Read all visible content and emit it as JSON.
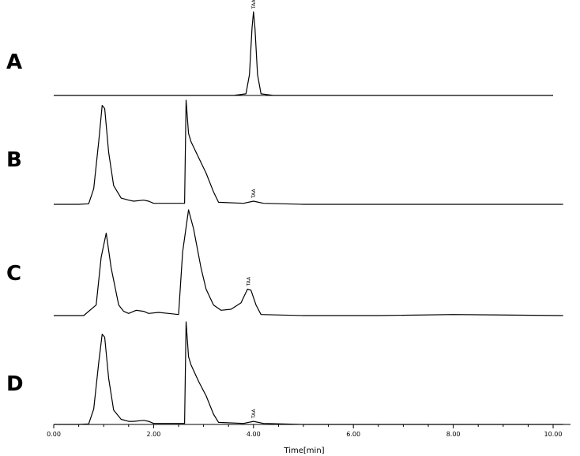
{
  "chart_data": {
    "type": "line",
    "title": "",
    "xlabel": "Time[min]",
    "ylabel": "",
    "xlim": [
      0,
      10
    ],
    "x_ticks": [
      "0.00",
      "2.00",
      "4.00",
      "6.00",
      "8.00",
      "10.00"
    ],
    "grid": false,
    "panels": [
      {
        "label": "A",
        "peak_label": "TAA",
        "peak_label_time": 4.0,
        "x_start": 0.0,
        "x_end": 10.0,
        "series": [
          {
            "x": [
              0,
              3.6,
              3.85,
              3.92,
              3.97,
              4.0,
              4.03,
              4.08,
              4.15,
              4.4,
              10.0
            ],
            "y": [
              0,
              0,
              0.02,
              0.25,
              0.8,
              1.0,
              0.8,
              0.25,
              0.02,
              0,
              0
            ]
          }
        ]
      },
      {
        "label": "B",
        "peak_label": "TAA",
        "peak_label_time": 4.0,
        "x_start": 0.0,
        "x_end": 10.2,
        "series": [
          {
            "x": [
              0,
              0.5,
              0.7,
              0.8,
              0.9,
              0.97,
              1.02,
              1.1,
              1.2,
              1.35,
              1.5,
              1.6,
              1.8,
              1.9,
              2.0,
              2.4,
              2.62,
              2.65,
              2.7,
              2.75,
              2.9,
              3.05,
              3.2,
              3.3,
              3.8,
              4.0,
              4.2,
              5.0,
              10.2
            ],
            "y": [
              0,
              0,
              0.005,
              0.15,
              0.6,
              0.95,
              0.92,
              0.5,
              0.18,
              0.06,
              0.04,
              0.03,
              0.04,
              0.03,
              0.01,
              0.01,
              0.01,
              1.0,
              0.68,
              0.6,
              0.45,
              0.3,
              0.12,
              0.02,
              0.01,
              0.03,
              0.01,
              0,
              0
            ]
          }
        ]
      },
      {
        "label": "C",
        "peak_label": "TAA",
        "peak_label_time": 3.9,
        "x_start": 0.0,
        "x_end": 10.2,
        "series": [
          {
            "x": [
              0,
              0.6,
              0.85,
              0.95,
              1.05,
              1.15,
              1.3,
              1.4,
              1.5,
              1.65,
              1.8,
              1.9,
              2.1,
              2.3,
              2.5,
              2.58,
              2.7,
              2.8,
              2.95,
              3.05,
              3.2,
              3.35,
              3.55,
              3.75,
              3.88,
              3.95,
              4.05,
              4.15,
              5.0,
              6.5,
              8.0,
              10.2
            ],
            "y": [
              0,
              0,
              0.1,
              0.55,
              0.78,
              0.45,
              0.1,
              0.04,
              0.02,
              0.05,
              0.04,
              0.02,
              0.03,
              0.02,
              0.01,
              0.6,
              1.0,
              0.82,
              0.45,
              0.25,
              0.1,
              0.05,
              0.06,
              0.12,
              0.25,
              0.24,
              0.1,
              0.01,
              0,
              0,
              0.01,
              0
            ]
          }
        ]
      },
      {
        "label": "D",
        "peak_label": "TAA",
        "peak_label_time": 4.0,
        "x_start": 0.0,
        "x_end": 10.2,
        "series": [
          {
            "x": [
              0,
              0.5,
              0.7,
              0.8,
              0.9,
              0.97,
              1.02,
              1.1,
              1.2,
              1.35,
              1.5,
              1.6,
              1.8,
              1.9,
              2.0,
              2.4,
              2.62,
              2.65,
              2.7,
              2.75,
              2.9,
              3.05,
              3.2,
              3.3,
              3.8,
              4.0,
              4.2,
              5.0,
              10.2
            ],
            "y": [
              0,
              0,
              0.005,
              0.15,
              0.6,
              0.88,
              0.85,
              0.45,
              0.14,
              0.05,
              0.03,
              0.03,
              0.04,
              0.03,
              0.01,
              0.01,
              0.01,
              1.0,
              0.66,
              0.58,
              0.42,
              0.28,
              0.1,
              0.02,
              0.01,
              0.03,
              0.01,
              0,
              0
            ]
          }
        ]
      }
    ]
  }
}
